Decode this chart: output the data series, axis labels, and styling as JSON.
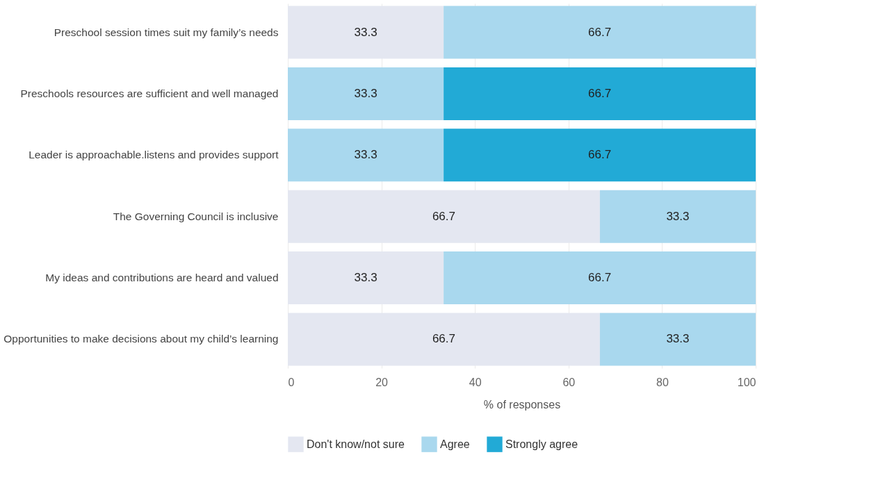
{
  "chart_data": {
    "type": "bar",
    "orientation": "horizontal",
    "stacked": true,
    "xlabel": "% of responses",
    "categories": [
      "Preschool session times suit my family’s needs",
      "Preschools resources are sufficient and well managed",
      "Leader is approachable.listens and provides support",
      "The Governing Council is inclusive",
      "My ideas and contributions are heard and valued",
      "Opportunities to make decisions about my child’s learning"
    ],
    "series": [
      {
        "name": "Don't know/not sure",
        "color": "#e4e7f1",
        "values": [
          33.3,
          null,
          null,
          66.7,
          33.3,
          66.7
        ]
      },
      {
        "name": "Agree",
        "color": "#a9d8ee",
        "values": [
          66.7,
          33.3,
          33.3,
          33.3,
          66.7,
          33.3
        ]
      },
      {
        "name": "Strongly agree",
        "color": "#22aad6",
        "values": [
          null,
          66.7,
          66.7,
          null,
          null,
          null
        ]
      }
    ],
    "xlim": [
      0,
      100
    ],
    "xticks": [
      0,
      20,
      40,
      60,
      80,
      100
    ],
    "grid": "x",
    "legend": "bottom",
    "data_labels": true
  }
}
